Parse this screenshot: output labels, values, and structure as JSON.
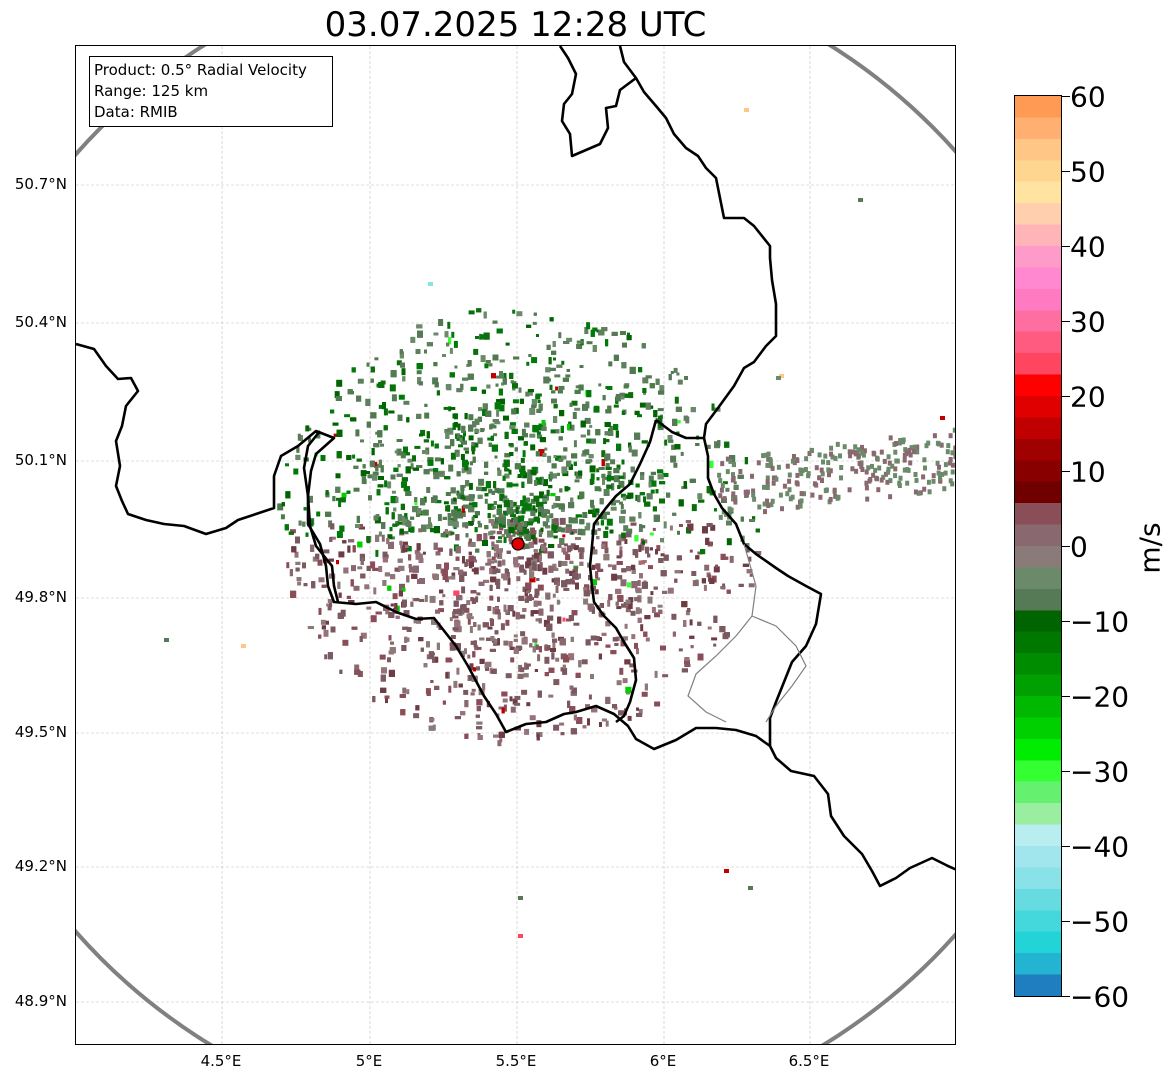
{
  "title": "03.07.2025 12:28 UTC",
  "info_box": {
    "product": "Product: 0.5° Radial Velocity",
    "range": "Range: 125 km",
    "data_source": "Data: RMIB"
  },
  "map": {
    "lat_ticks": [
      "50.7°N",
      "50.4°N",
      "50.1°N",
      "49.8°N",
      "49.5°N",
      "49.2°N",
      "48.9°N"
    ],
    "lon_ticks": [
      "4.5°E",
      "5°E",
      "5.5°E",
      "6°E",
      "6.5°E"
    ],
    "grid": true,
    "range_ring_color": "#808080",
    "border_color": "#000000",
    "secondary_border_color": "#808080",
    "radar_marker_color": "#e00000"
  },
  "colorbar": {
    "unit": "m/s",
    "tick_labels": [
      "60",
      "50",
      "40",
      "30",
      "20",
      "10",
      "0",
      "−10",
      "−20",
      "−30",
      "−40",
      "−50",
      "−60"
    ],
    "range": [
      -60,
      60
    ],
    "colors_top_to_bottom": [
      "#ff9a55",
      "#ffb070",
      "#ffc685",
      "#ffd690",
      "#ffe3a0",
      "#ffcfae",
      "#ffb5b8",
      "#ff9bc8",
      "#ff88d0",
      "#ff7ac0",
      "#ff6ea0",
      "#ff5a80",
      "#ff4560",
      "#ff0000",
      "#e00000",
      "#c00000",
      "#a00000",
      "#880000",
      "#700000",
      "#8a4e58",
      "#8a6870",
      "#8a7a78",
      "#6a8a6a",
      "#557a55",
      "#006400",
      "#007800",
      "#008c00",
      "#00a000",
      "#00b800",
      "#00d000",
      "#00ec00",
      "#33ff33",
      "#66f070",
      "#99eea0",
      "#b8eef0",
      "#a0e6ec",
      "#88e2e8",
      "#66dce0",
      "#44d8dc",
      "#22d4d8",
      "#22b4d0",
      "#1e7ec0"
    ]
  }
}
